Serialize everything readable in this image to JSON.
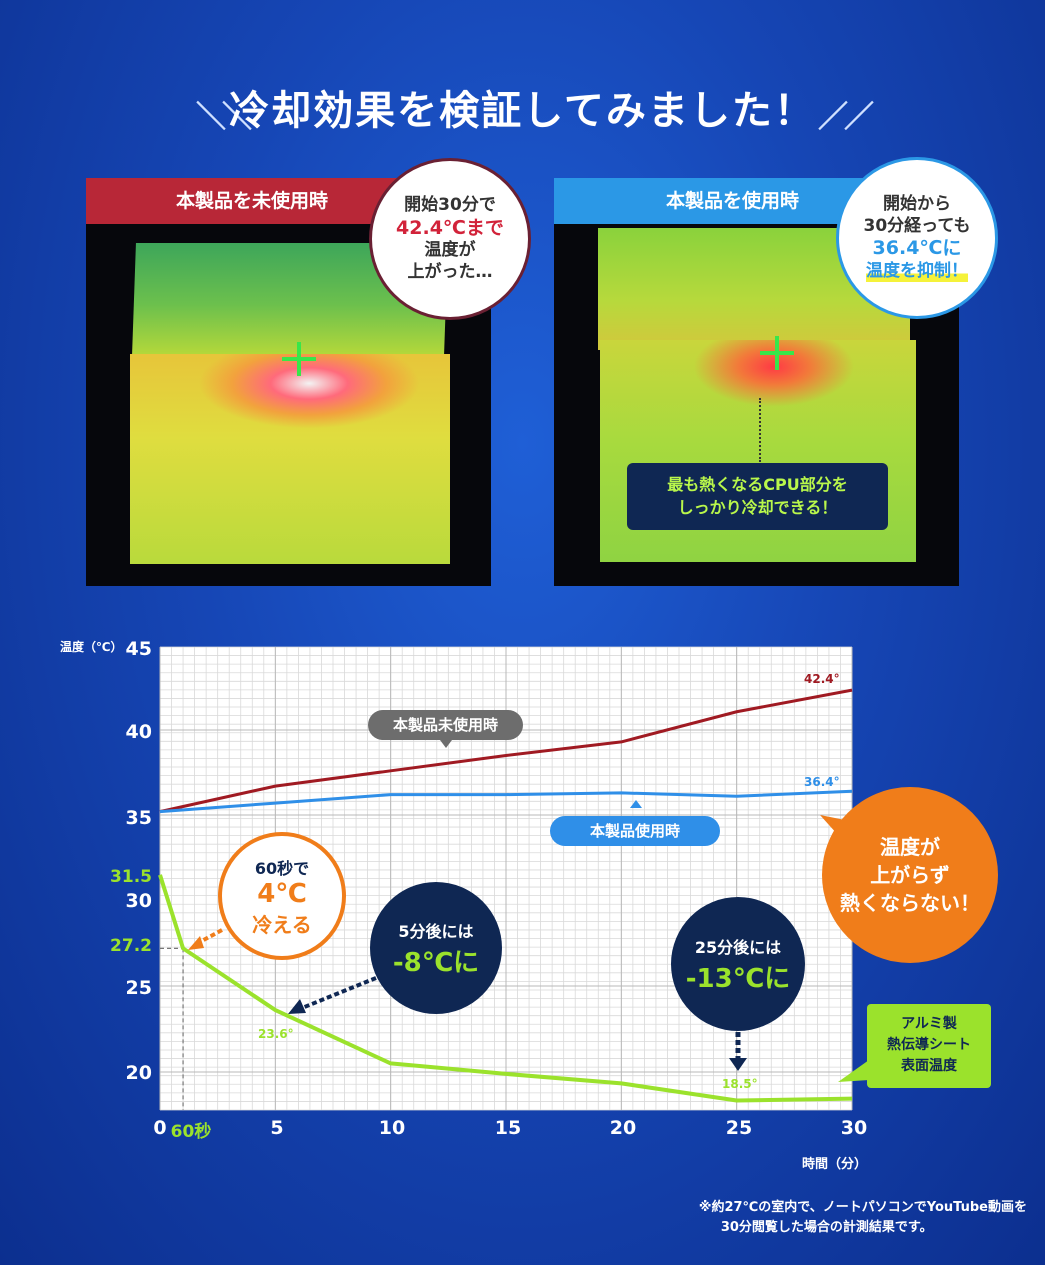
{
  "title": "冷却効果を検証してみました！",
  "left_panel": {
    "header": "本製品を未使用時",
    "bubble": [
      "開始30分で",
      "42.4℃まで",
      "温度が",
      "上がった…"
    ]
  },
  "right_panel": {
    "header": "本製品を使用時",
    "bubble": [
      "開始から",
      "30分経っても",
      "36.4℃に",
      "温度を抑制！"
    ],
    "note": [
      "最も熱くなるCPU部分を",
      "しっかり冷却できる！"
    ]
  },
  "callouts": {
    "orange_circle": [
      "温度が",
      "上がらず",
      "熱くならない！"
    ],
    "c60": [
      "60秒で",
      "4℃",
      "冷える"
    ],
    "c5": [
      "5分後には",
      "-8℃に"
    ],
    "c25": [
      "25分後には",
      "-13℃に"
    ],
    "sheet_label": [
      "アルミ製",
      "熱伝導シート",
      "表面温度"
    ]
  },
  "footnote": [
    "※約27℃の室内で、ノートパソコンでYouTube動画を",
    "30分閲覧した場合の計測結果です。"
  ],
  "colors": {
    "red": "#a01a22",
    "blue": "#2f8fe8",
    "green": "#9be22c",
    "orange": "#f07d1a",
    "navy": "#0f2753"
  },
  "chart_data": {
    "type": "line",
    "xlabel": "時間（分）",
    "ylabel": "温度（℃）",
    "xlim": [
      0,
      30
    ],
    "ylim": [
      18,
      45
    ],
    "x_ticks": [
      "0",
      "60秒",
      "5",
      "10",
      "15",
      "20",
      "25",
      "30"
    ],
    "y_ticks": [
      "45",
      "40",
      "35",
      "31.5",
      "30",
      "27.2",
      "25",
      "20"
    ],
    "series": [
      {
        "name": "本製品未使用時",
        "x": [
          0,
          5,
          10,
          15,
          20,
          25,
          30
        ],
        "values": [
          35.2,
          36.7,
          37.6,
          38.5,
          39.3,
          41.1,
          42.4
        ],
        "end_label": "42.4°"
      },
      {
        "name": "本製品使用時",
        "x": [
          0,
          5,
          10,
          15,
          20,
          25,
          30
        ],
        "values": [
          35.2,
          35.7,
          36.2,
          36.2,
          36.3,
          36.1,
          36.4
        ],
        "end_label": "36.4°"
      },
      {
        "name": "アルミ製熱伝導シート表面温度",
        "x": [
          0,
          1,
          5,
          10,
          15,
          20,
          25,
          30
        ],
        "values": [
          31.5,
          27.2,
          23.6,
          20.5,
          19.9,
          19.4,
          18.5,
          18.6
        ]
      }
    ],
    "point_labels": [
      "23.6°",
      "18.5°"
    ]
  }
}
